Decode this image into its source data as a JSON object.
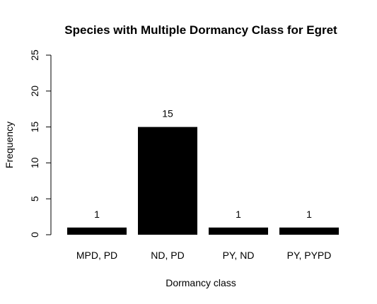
{
  "chart_data": {
    "type": "bar",
    "title": "Species with Multiple Dormancy Class for Egret",
    "xlabel": "Dormancy class",
    "ylabel": "Frequency",
    "categories": [
      "MPD, PD",
      "ND, PD",
      "PY, ND",
      "PY, PYPD"
    ],
    "values": [
      1,
      15,
      1,
      1
    ],
    "data_labels": [
      "1",
      "15",
      "1",
      "1"
    ],
    "ylim": [
      0,
      25
    ],
    "yticks": [
      0,
      5,
      10,
      15,
      20,
      25
    ],
    "ytick_labels": [
      "0",
      "5",
      "10",
      "15",
      "20",
      "25"
    ],
    "grid": false,
    "legend": "none",
    "bar_color": "#000000"
  }
}
